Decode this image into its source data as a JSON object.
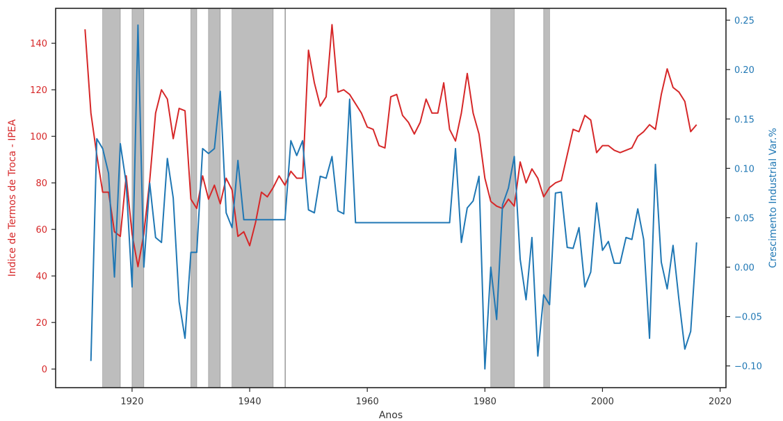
{
  "chart_data": {
    "type": "line",
    "xlabel": "Anos",
    "ylabel_left": "Indice de Termos de Troca - IPEA",
    "ylabel_right": "Crescimento Industrial Var.%",
    "xlim": [
      1907,
      2021
    ],
    "ylim_left": [
      -8,
      155
    ],
    "ylim_right": [
      -0.122,
      0.262
    ],
    "x_ticks": [
      1920,
      1940,
      1960,
      1980,
      2000,
      2020
    ],
    "x_tick_labels": [
      "1920",
      "1940",
      "1960",
      "1980",
      "2000",
      "2020"
    ],
    "y_left_ticks": [
      0,
      20,
      40,
      60,
      80,
      100,
      120,
      140
    ],
    "y_left_tick_labels": [
      "0",
      "20",
      "40",
      "60",
      "80",
      "100",
      "120",
      "140"
    ],
    "y_right_ticks": [
      -0.1,
      -0.05,
      0.0,
      0.05,
      0.1,
      0.15,
      0.2,
      0.25
    ],
    "y_right_tick_labels": [
      "−0.10",
      "−0.05",
      "0.00",
      "0.05",
      "0.10",
      "0.15",
      "0.20",
      "0.25"
    ],
    "grid": false,
    "colors": {
      "left_series": "#d62728",
      "right_series": "#1f77b4",
      "shade": "#bdbdbd",
      "shade_edge": "#8a8a8a",
      "left_axis_text": "#d62728",
      "right_axis_text": "#1f77b4"
    },
    "shaded_periods": [
      [
        1915,
        1918
      ],
      [
        1920,
        1922
      ],
      [
        1930,
        1931
      ],
      [
        1933,
        1935
      ],
      [
        1937,
        1944
      ],
      [
        1946,
        1946
      ],
      [
        1981,
        1985
      ],
      [
        1990,
        1991
      ]
    ],
    "series": [
      {
        "axis": "left",
        "x": [
          1912,
          1913,
          1914,
          1915,
          1916,
          1917,
          1918,
          1919,
          1920,
          1921,
          1922,
          1923,
          1924,
          1925,
          1926,
          1927,
          1928,
          1929,
          1930,
          1931,
          1932,
          1933,
          1934,
          1935,
          1936,
          1937,
          1938,
          1939,
          1940,
          1941,
          1942,
          1943,
          1944,
          1945,
          1946,
          1947,
          1948,
          1949,
          1950,
          1951,
          1952,
          1953,
          1954,
          1955,
          1956,
          1957,
          1958,
          1959,
          1960,
          1961,
          1962,
          1963,
          1964,
          1965,
          1966,
          1967,
          1968,
          1969,
          1970,
          1971,
          1972,
          1973,
          1974,
          1975,
          1976,
          1977,
          1978,
          1979,
          1980,
          1981,
          1982,
          1983,
          1984,
          1985,
          1986,
          1987,
          1988,
          1989,
          1990,
          1991,
          1992,
          1993,
          1994,
          1995,
          1996,
          1997,
          1998,
          1999,
          2000,
          2001,
          2002,
          2003,
          2004,
          2005,
          2006,
          2007,
          2008,
          2009,
          2010,
          2011,
          2012,
          2013,
          2014,
          2015,
          2016
        ],
        "values": [
          146,
          110,
          92,
          76,
          76,
          59,
          57,
          83,
          58,
          44,
          58,
          81,
          110,
          120,
          116,
          99,
          112,
          111,
          73,
          69,
          83,
          73,
          79,
          71,
          82,
          77,
          57,
          59,
          53,
          63,
          76,
          74,
          78,
          83,
          79,
          85,
          82,
          82,
          137,
          123,
          113,
          117,
          148,
          119,
          120,
          118,
          114,
          110,
          104,
          103,
          96,
          95,
          117,
          118,
          109,
          106,
          101,
          106,
          116,
          110,
          110,
          123,
          103,
          98,
          110,
          127,
          110,
          101,
          82,
          72,
          70,
          69,
          73,
          70,
          89,
          80,
          86,
          82,
          74,
          78,
          80,
          81,
          92,
          103,
          102,
          109,
          107,
          93,
          96,
          96,
          94,
          93,
          94,
          95,
          100,
          102,
          105,
          103,
          118,
          129,
          121,
          119,
          115,
          102,
          105
        ]
      },
      {
        "axis": "right",
        "x": [
          1913,
          1914,
          1915,
          1916,
          1917,
          1918,
          1919,
          1920,
          1921,
          1922,
          1923,
          1924,
          1925,
          1926,
          1927,
          1928,
          1929,
          1930,
          1931,
          1932,
          1933,
          1934,
          1935,
          1936,
          1937,
          1938,
          1939,
          1940,
          1941,
          1942,
          1943,
          1944,
          1945,
          1946,
          1947,
          1948,
          1949,
          1950,
          1951,
          1952,
          1953,
          1954,
          1955,
          1956,
          1957,
          1958,
          1959,
          1960,
          1961,
          1962,
          1963,
          1964,
          1965,
          1966,
          1967,
          1968,
          1969,
          1970,
          1971,
          1972,
          1973,
          1974,
          1975,
          1976,
          1977,
          1978,
          1979,
          1980,
          1981,
          1982,
          1983,
          1984,
          1985,
          1986,
          1987,
          1988,
          1989,
          1990,
          1991,
          1992,
          1993,
          1994,
          1995,
          1996,
          1997,
          1998,
          1999,
          2000,
          2001,
          2002,
          2003,
          2004,
          2005,
          2006,
          2007,
          2008,
          2009,
          2010,
          2011,
          2012,
          2013,
          2014,
          2015,
          2016
        ],
        "values": [
          -0.095,
          0.13,
          0.12,
          0.095,
          -0.01,
          0.125,
          0.085,
          -0.02,
          0.245,
          0.0,
          0.085,
          0.03,
          0.025,
          0.11,
          0.07,
          -0.035,
          -0.072,
          0.015,
          0.015,
          0.12,
          0.115,
          0.12,
          0.178,
          0.055,
          0.04,
          0.108,
          0.048,
          0.048,
          0.048,
          0.048,
          0.048,
          0.048,
          0.048,
          0.048,
          0.128,
          0.113,
          0.128,
          0.058,
          0.055,
          0.092,
          0.09,
          0.112,
          0.057,
          0.054,
          0.17,
          0.045,
          0.045,
          0.045,
          0.045,
          0.045,
          0.045,
          0.045,
          0.045,
          0.045,
          0.045,
          0.045,
          0.045,
          0.045,
          0.045,
          0.045,
          0.045,
          0.045,
          0.12,
          0.025,
          0.06,
          0.067,
          0.092,
          -0.103,
          0.0,
          -0.053,
          0.063,
          0.08,
          0.112,
          0.008,
          -0.033,
          0.03,
          -0.09,
          -0.028,
          -0.038,
          0.075,
          0.076,
          0.02,
          0.019,
          0.04,
          -0.02,
          -0.005,
          0.065,
          0.017,
          0.026,
          0.004,
          0.004,
          0.03,
          0.028,
          0.059,
          0.028,
          -0.072,
          0.104,
          0.005,
          -0.022,
          0.022,
          -0.033,
          -0.083,
          -0.065,
          0.025
        ]
      }
    ]
  }
}
